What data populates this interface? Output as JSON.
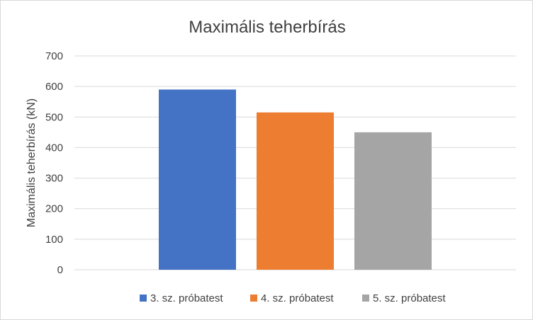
{
  "chart_data": {
    "type": "bar",
    "title": "Maximális teherbírás",
    "xlabel": "",
    "ylabel": "Maximális teherbírás (kN)",
    "ylim": [
      0,
      700
    ],
    "yticks": [
      0,
      100,
      200,
      300,
      400,
      500,
      600,
      700
    ],
    "grid": true,
    "legend_position": "bottom",
    "series": [
      {
        "name": "3. sz. próbatest",
        "value": 590,
        "color": "#4472C4"
      },
      {
        "name": "4. sz. próbatest",
        "value": 515,
        "color": "#ED7D31"
      },
      {
        "name": "5. sz. próbatest",
        "value": 450,
        "color": "#A5A5A5"
      }
    ]
  }
}
